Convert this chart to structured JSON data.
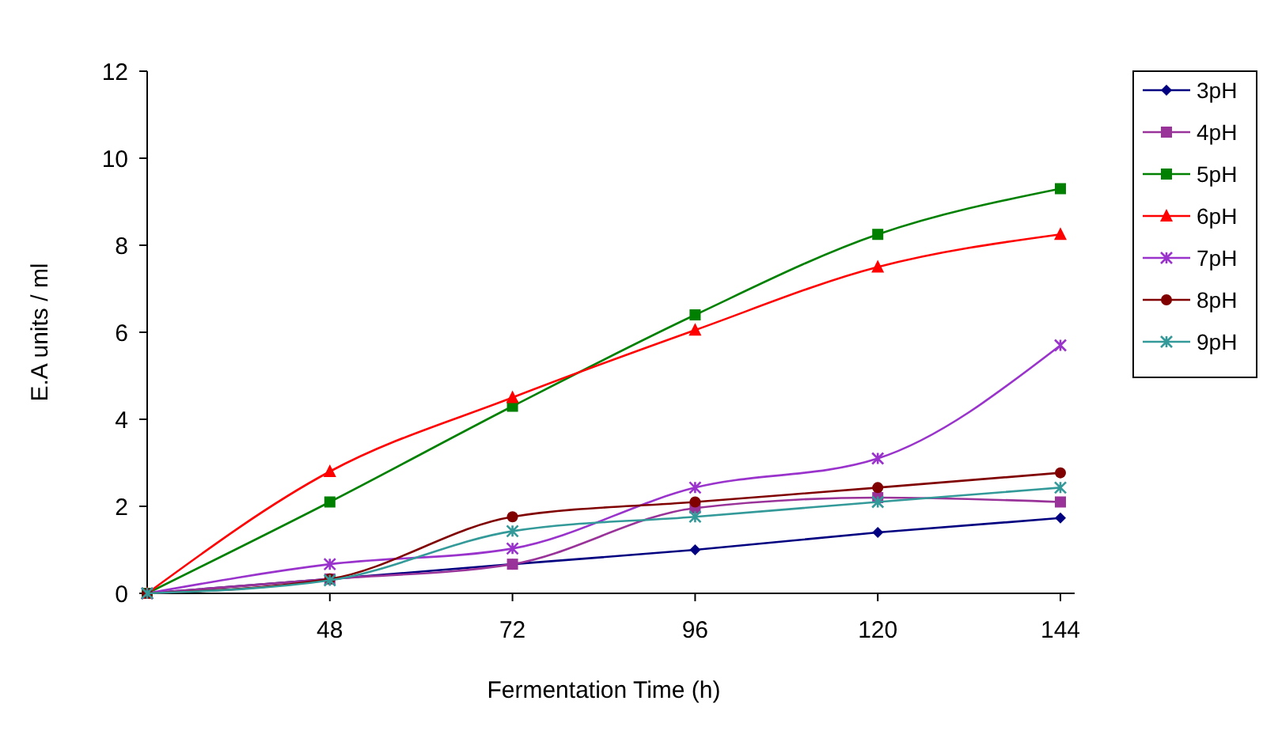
{
  "chart_data": {
    "type": "line",
    "xlabel": "Fermentation Time (h)",
    "ylabel": "E.A units / ml",
    "categories": [
      null,
      "48",
      "72",
      "96",
      "120",
      "144"
    ],
    "ylim": [
      0,
      12
    ],
    "yticks": [
      0,
      2,
      4,
      6,
      8,
      10,
      12
    ],
    "grid": false,
    "legend": "right",
    "series": [
      {
        "name": "3pH",
        "color": "#000080",
        "marker": "diamond",
        "values": [
          0,
          0.33,
          0.67,
          1.0,
          1.4,
          1.73
        ]
      },
      {
        "name": "4pH",
        "color": "#993399",
        "marker": "square",
        "values": [
          0,
          0.33,
          0.67,
          1.96,
          2.2,
          2.1
        ]
      },
      {
        "name": "5pH",
        "color": "#008000",
        "marker": "square",
        "values": [
          0,
          2.1,
          4.3,
          6.4,
          8.25,
          9.3
        ]
      },
      {
        "name": "6pH",
        "color": "#ff0000",
        "marker": "triangle",
        "values": [
          0,
          2.8,
          4.5,
          6.05,
          7.5,
          8.25
        ]
      },
      {
        "name": "7pH",
        "color": "#9933cc",
        "marker": "cross",
        "values": [
          0,
          0.67,
          1.03,
          2.43,
          3.1,
          5.7
        ]
      },
      {
        "name": "8pH",
        "color": "#800000",
        "marker": "circle",
        "values": [
          0,
          0.33,
          1.76,
          2.1,
          2.43,
          2.77
        ]
      },
      {
        "name": "9pH",
        "color": "#339999",
        "marker": "cross",
        "values": [
          0,
          0.3,
          1.43,
          1.76,
          2.1,
          2.43
        ]
      }
    ]
  }
}
